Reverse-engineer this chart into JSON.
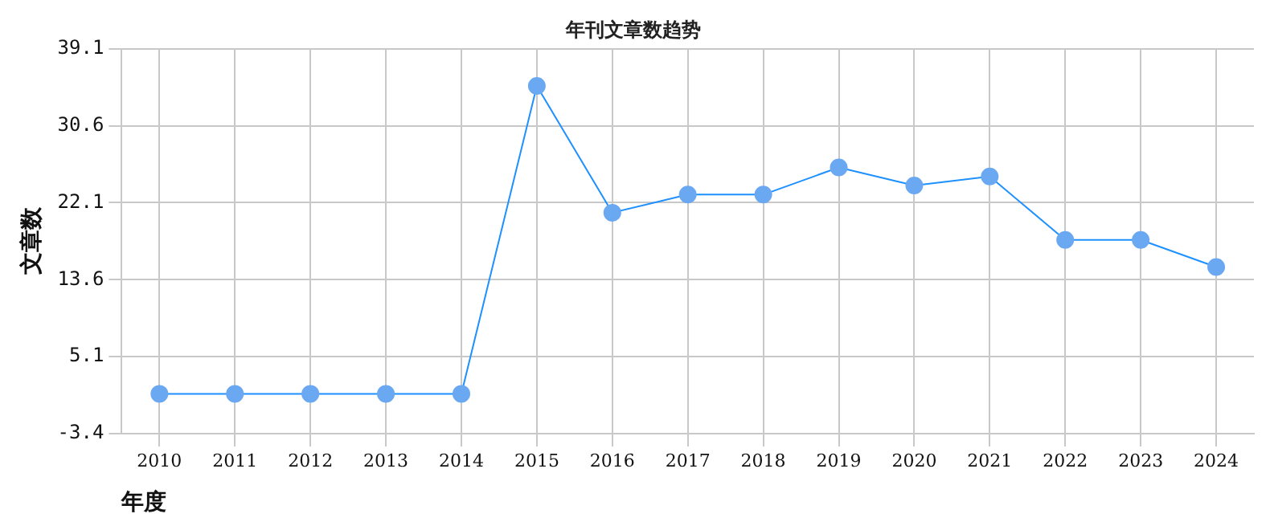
{
  "chart_data": {
    "type": "line",
    "title": "年刊文章数趋势",
    "xlabel": "年度",
    "ylabel": "文章数",
    "categories": [
      "2010",
      "2011",
      "2012",
      "2013",
      "2014",
      "2015",
      "2016",
      "2017",
      "2018",
      "2019",
      "2020",
      "2021",
      "2022",
      "2023",
      "2024"
    ],
    "series": [
      {
        "color": "#1e90ff",
        "values": [
          1,
          1,
          1,
          1,
          1,
          35,
          21,
          23,
          23,
          26,
          24,
          25,
          18,
          18,
          15
        ]
      }
    ],
    "ylim": [
      -3.4,
      39.1
    ],
    "yticks": [
      -3.4,
      5.1,
      13.6,
      22.1,
      30.6,
      39.1
    ],
    "grid": true,
    "marker": "circle",
    "line_style": "solid",
    "legend": false
  }
}
